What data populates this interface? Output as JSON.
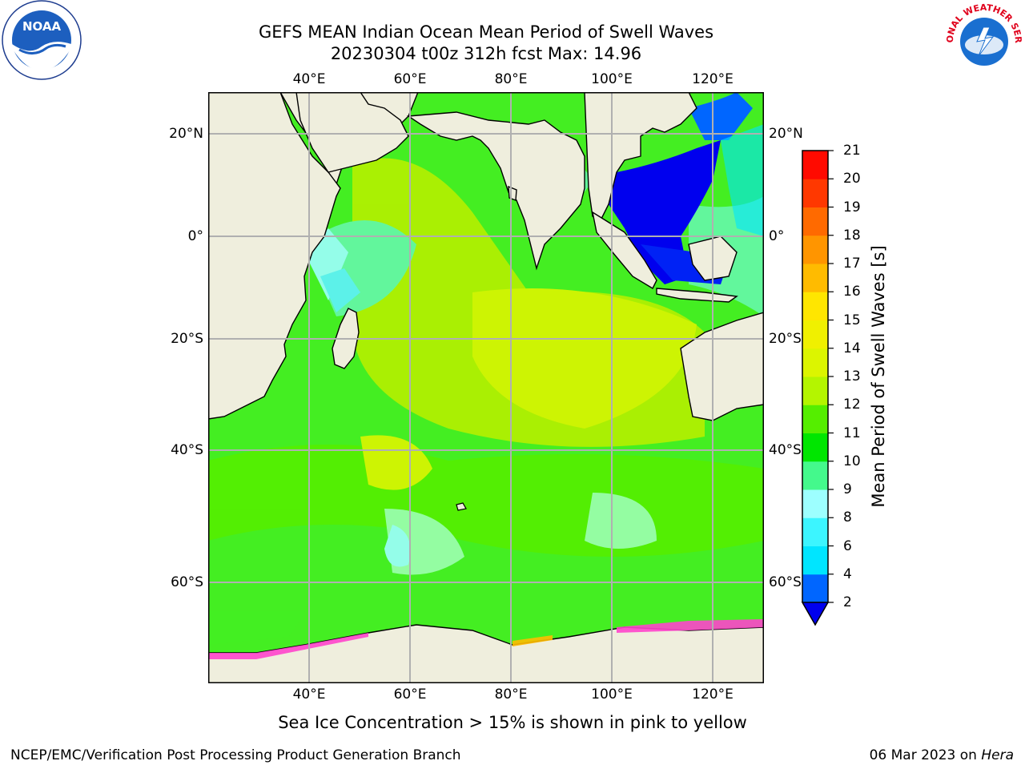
{
  "title": {
    "line1": "GEFS MEAN Indian Ocean Mean Period of Swell Waves",
    "line2": "20230304 t00z 312h fcst   Max: 14.96"
  },
  "axes": {
    "lon_ticks": [
      "40°E",
      "60°E",
      "80°E",
      "100°E",
      "120°E"
    ],
    "lat_ticks": [
      "20°N",
      "0°",
      "20°S",
      "40°S",
      "60°S"
    ]
  },
  "colorbar": {
    "title": "Mean Period of Swell Waves [s]",
    "labels": [
      "2",
      "4",
      "6",
      "8",
      "9",
      "10",
      "11",
      "12",
      "13",
      "14",
      "15",
      "16",
      "17",
      "18",
      "19",
      "20",
      "21"
    ],
    "colors": [
      "#0066ff",
      "#00e5ff",
      "#3cf5ff",
      "#9dffff",
      "#44f98c",
      "#00e600",
      "#55ee00",
      "#b4f500",
      "#dcf500",
      "#f0f000",
      "#ffe600",
      "#ffbb00",
      "#ff9500",
      "#ff6a00",
      "#ff3800",
      "#ff0a00"
    ],
    "extend_color": "#0000ee"
  },
  "map": {
    "land_color": "#efeedd",
    "ocean_color": "#44ee22",
    "ice_color": "#ff44cc",
    "grid_color": "#b0b0b0"
  },
  "note": "Sea Ice Concentration > 15% is shown in pink to yellow",
  "footer": {
    "left": "NCEP/EMC/Verification Post Processing Product Generation Branch",
    "date": "06 Mar 2023 on ",
    "host": "Hera"
  },
  "logos": {
    "noaa": "NOAA",
    "nws": "NATIONAL WEATHER SERVICE"
  }
}
